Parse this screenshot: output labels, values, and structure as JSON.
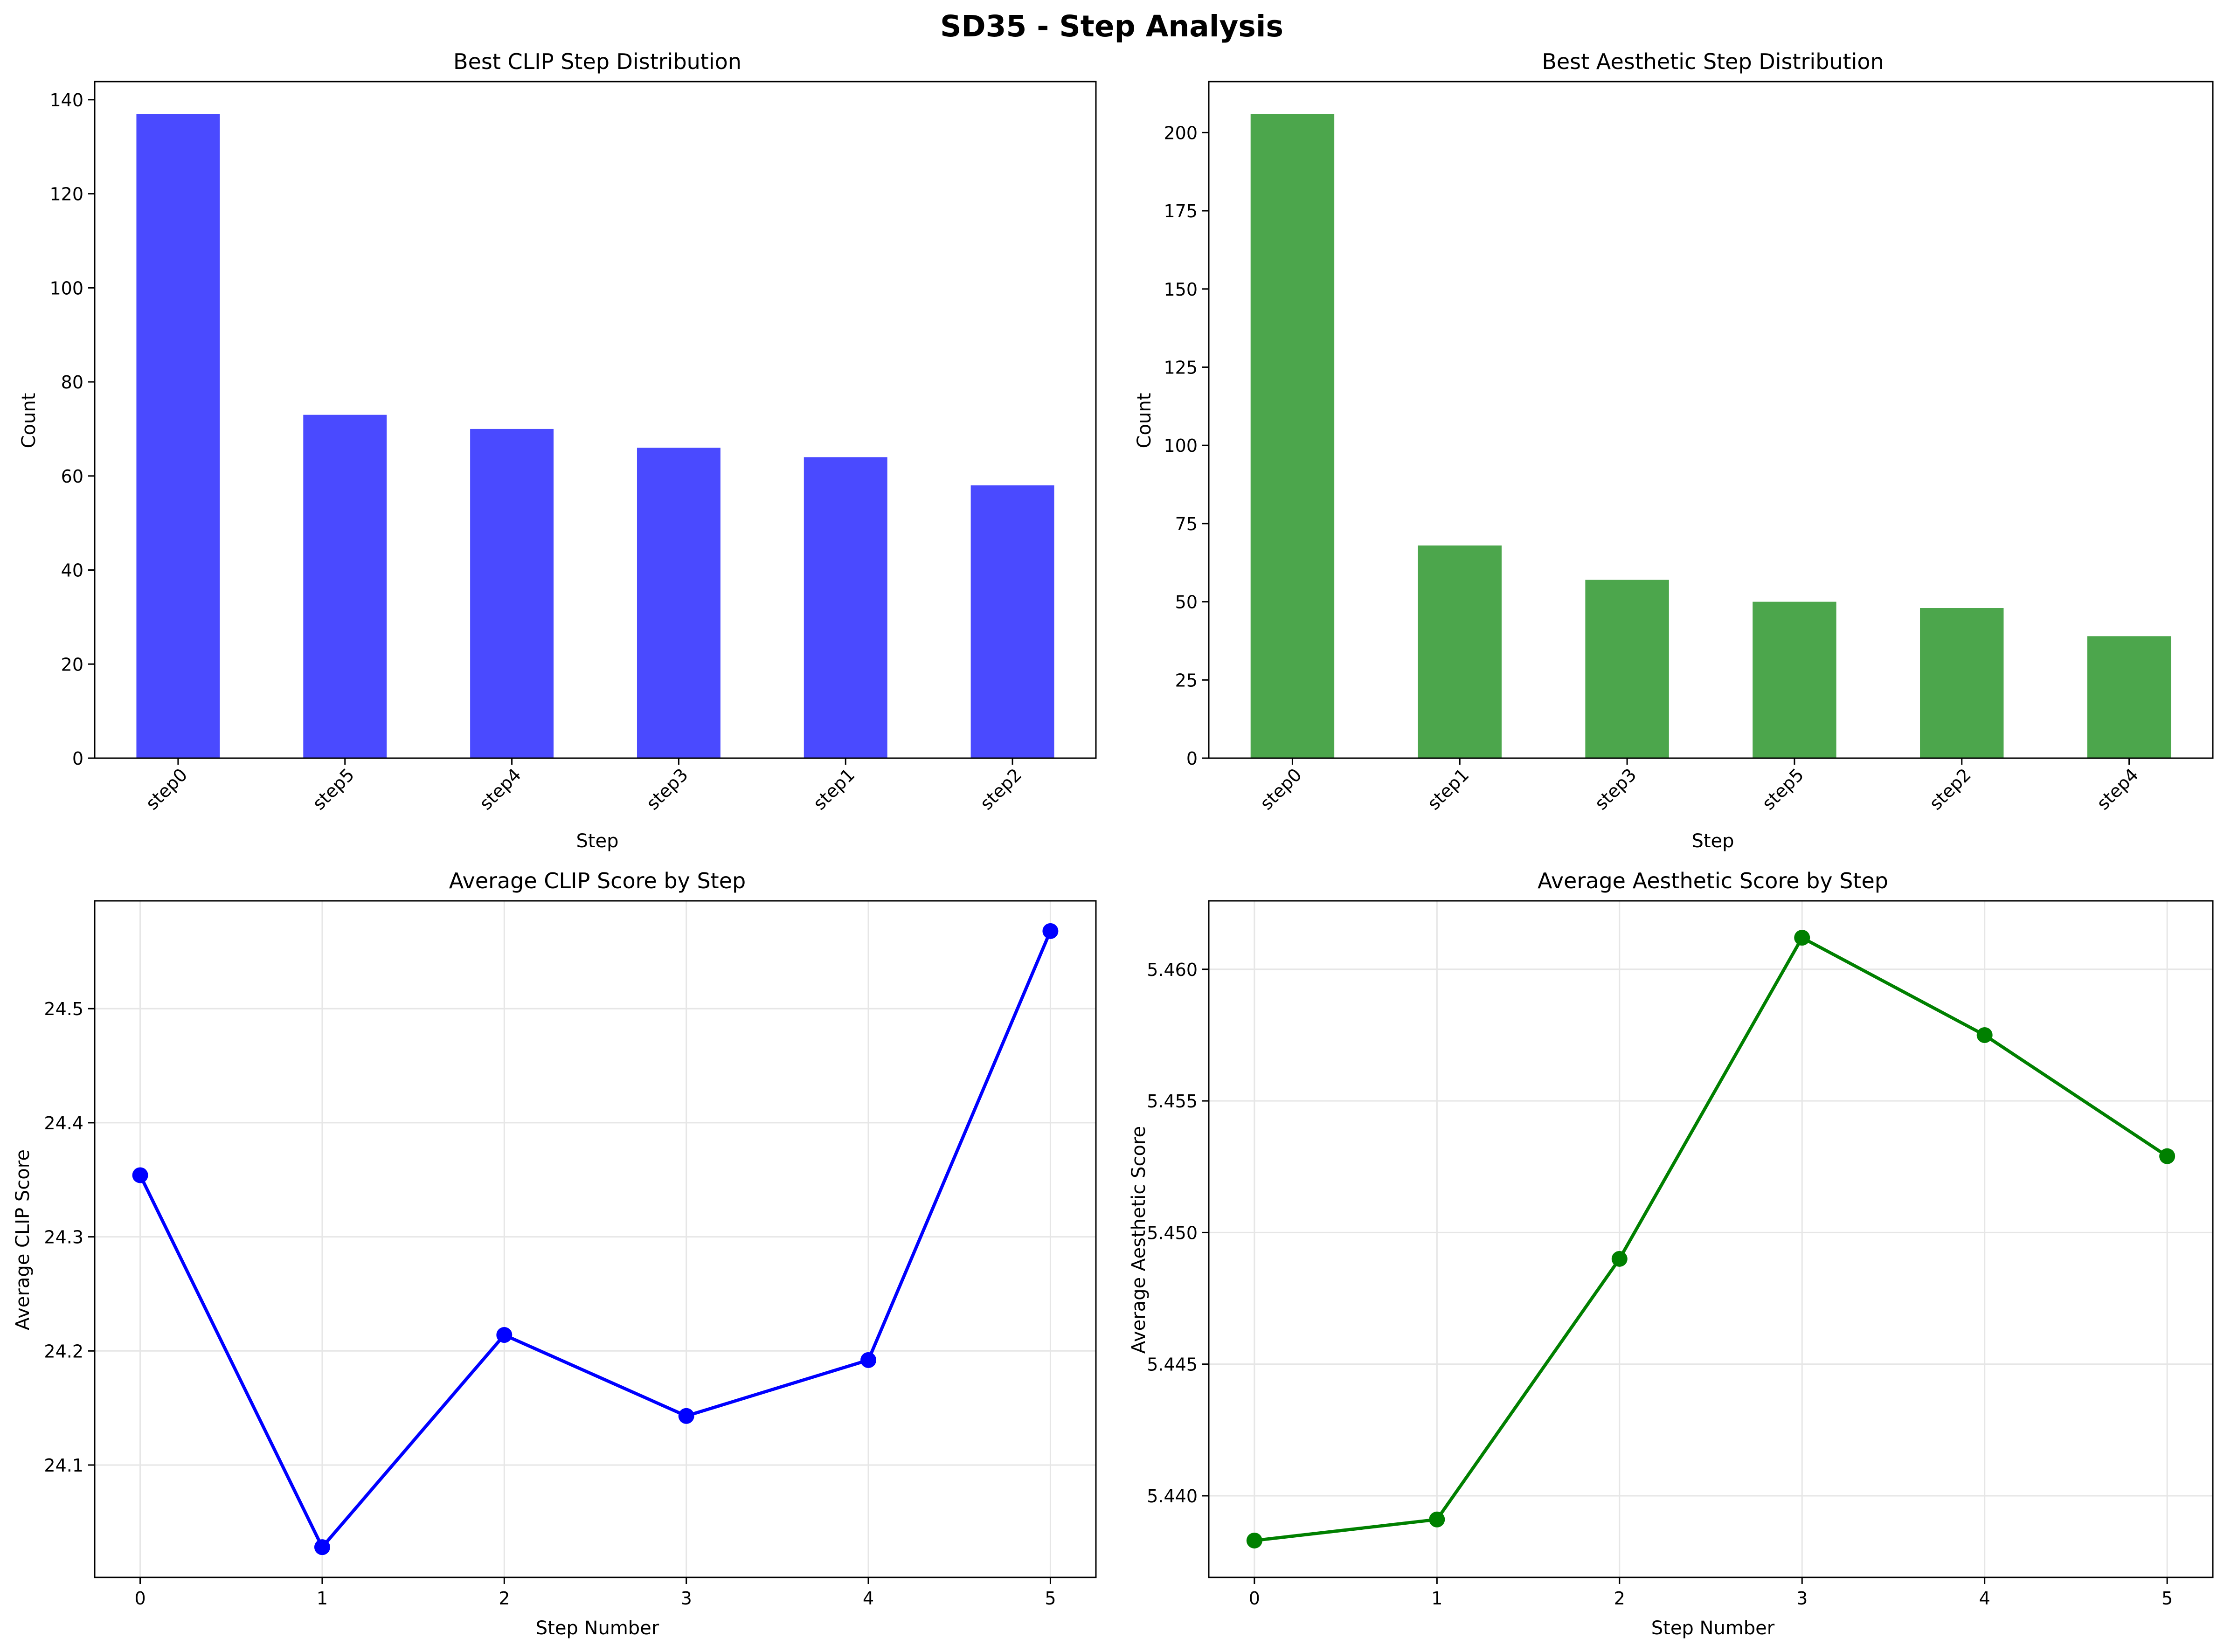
{
  "suptitle": "SD35 - Step Analysis",
  "chart_data": [
    {
      "type": "bar",
      "title": "Best CLIP Step Distribution",
      "xlabel": "Step",
      "ylabel": "Count",
      "categories": [
        "step0",
        "step5",
        "step4",
        "step3",
        "step1",
        "step2"
      ],
      "values": [
        137,
        73,
        70,
        66,
        64,
        58
      ],
      "ylim": [
        0,
        143.85
      ],
      "yticks": [
        0,
        20,
        40,
        60,
        80,
        100,
        120,
        140
      ],
      "ytick_labels": [
        "0",
        "20",
        "40",
        "60",
        "80",
        "100",
        "120",
        "140"
      ],
      "color": "#4a4aff",
      "grid": false
    },
    {
      "type": "bar",
      "title": "Best Aesthetic Step Distribution",
      "xlabel": "Step",
      "ylabel": "Count",
      "categories": [
        "step0",
        "step1",
        "step3",
        "step5",
        "step2",
        "step4"
      ],
      "values": [
        206,
        68,
        57,
        50,
        48,
        39
      ],
      "ylim": [
        0,
        216.3
      ],
      "yticks": [
        0,
        25,
        50,
        75,
        100,
        125,
        150,
        175,
        200
      ],
      "ytick_labels": [
        "0",
        "25",
        "50",
        "75",
        "100",
        "125",
        "150",
        "175",
        "200"
      ],
      "color": "#4ca64c",
      "grid": false
    },
    {
      "type": "line",
      "title": "Average CLIP Score by Step",
      "xlabel": "Step Number",
      "ylabel": "Average CLIP Score",
      "x": [
        0,
        1,
        2,
        3,
        4,
        5
      ],
      "values": [
        24.354,
        24.028,
        24.214,
        24.143,
        24.192,
        24.568
      ],
      "xlim": [
        -0.25,
        5.25
      ],
      "ylim": [
        24.0015,
        24.5945
      ],
      "xticks": [
        0,
        1,
        2,
        3,
        4,
        5
      ],
      "xtick_labels": [
        "0",
        "1",
        "2",
        "3",
        "4",
        "5"
      ],
      "yticks": [
        24.1,
        24.2,
        24.3,
        24.4,
        24.5
      ],
      "ytick_labels": [
        "24.1",
        "24.2",
        "24.3",
        "24.4",
        "24.5"
      ],
      "color": "#0000ff",
      "grid": true
    },
    {
      "type": "line",
      "title": "Average Aesthetic Score by Step",
      "xlabel": "Step Number",
      "ylabel": "Average Aesthetic Score",
      "x": [
        0,
        1,
        2,
        3,
        4,
        5
      ],
      "values": [
        5.4383,
        5.4391,
        5.449,
        5.4612,
        5.4575,
        5.4529
      ],
      "xlim": [
        -0.25,
        5.25
      ],
      "ylim": [
        5.4369,
        5.4626
      ],
      "xticks": [
        0,
        1,
        2,
        3,
        4,
        5
      ],
      "xtick_labels": [
        "0",
        "1",
        "2",
        "3",
        "4",
        "5"
      ],
      "yticks": [
        5.44,
        5.445,
        5.45,
        5.455,
        5.46
      ],
      "ytick_labels": [
        "5.440",
        "5.445",
        "5.450",
        "5.455",
        "5.460"
      ],
      "color": "#008000",
      "grid": true
    }
  ]
}
